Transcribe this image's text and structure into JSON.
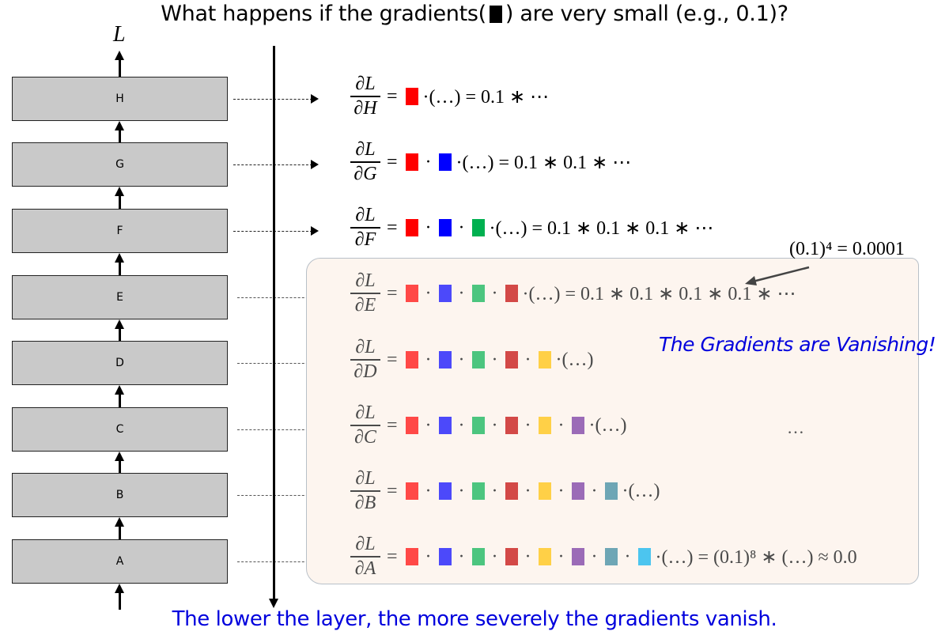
{
  "title": {
    "prefix": "What happens if the gradients(",
    "suffix": ") are very small (e.g., 0.1)?"
  },
  "loss_label": "L",
  "layers": [
    {
      "label": "H"
    },
    {
      "label": "G"
    },
    {
      "label": "F"
    },
    {
      "label": "E"
    },
    {
      "label": "D"
    },
    {
      "label": "C"
    },
    {
      "label": "B"
    },
    {
      "label": "A"
    }
  ],
  "colors": {
    "red": "#ff0000",
    "blue": "#0000ff",
    "green": "#00b050",
    "crimson": "#c00000",
    "yellow": "#ffc000",
    "purple": "#7030a0",
    "teal": "#31859c",
    "cyan": "#00b0f0",
    "layer_fill": "#c9c9c9",
    "panel_fill": "#fdf5ef",
    "note_blue": "#0000dd"
  },
  "equations": [
    {
      "num": "∂L",
      "den": "∂H",
      "blocks": [
        "red"
      ],
      "tail": "·(…) = 0.1 ∗ ⋯"
    },
    {
      "num": "∂L",
      "den": "∂G",
      "blocks": [
        "red",
        "blue"
      ],
      "tail": "·(…) = 0.1 ∗ 0.1 ∗ ⋯"
    },
    {
      "num": "∂L",
      "den": "∂F",
      "blocks": [
        "red",
        "blue",
        "green"
      ],
      "tail": "·(…) = 0.1 ∗ 0.1 ∗ 0.1 ∗ ⋯"
    },
    {
      "num": "∂L",
      "den": "∂E",
      "blocks": [
        "red",
        "blue",
        "green",
        "crimson"
      ],
      "tail": "·(…) = 0.1 ∗ 0.1 ∗ 0.1 ∗ 0.1 ∗ ⋯"
    },
    {
      "num": "∂L",
      "den": "∂D",
      "blocks": [
        "red",
        "blue",
        "green",
        "crimson",
        "yellow"
      ],
      "tail": "·(…)"
    },
    {
      "num": "∂L",
      "den": "∂C",
      "blocks": [
        "red",
        "blue",
        "green",
        "crimson",
        "yellow",
        "purple"
      ],
      "tail": "·(…)"
    },
    {
      "num": "∂L",
      "den": "∂B",
      "blocks": [
        "red",
        "blue",
        "green",
        "crimson",
        "yellow",
        "purple",
        "teal"
      ],
      "tail": "·(…)"
    },
    {
      "num": "∂L",
      "den": "∂A",
      "blocks": [
        "red",
        "blue",
        "green",
        "crimson",
        "yellow",
        "purple",
        "teal",
        "cyan"
      ],
      "tail": "·(…) = (0.1)⁸ ∗ (…) ≈ 0.0"
    }
  ],
  "annotation": "(0.1)⁴ = 0.0001",
  "vanishing_note": "The Gradients are Vanishing!",
  "ellipsis": "…",
  "caption": "The lower the layer, the more severely the gradients vanish."
}
